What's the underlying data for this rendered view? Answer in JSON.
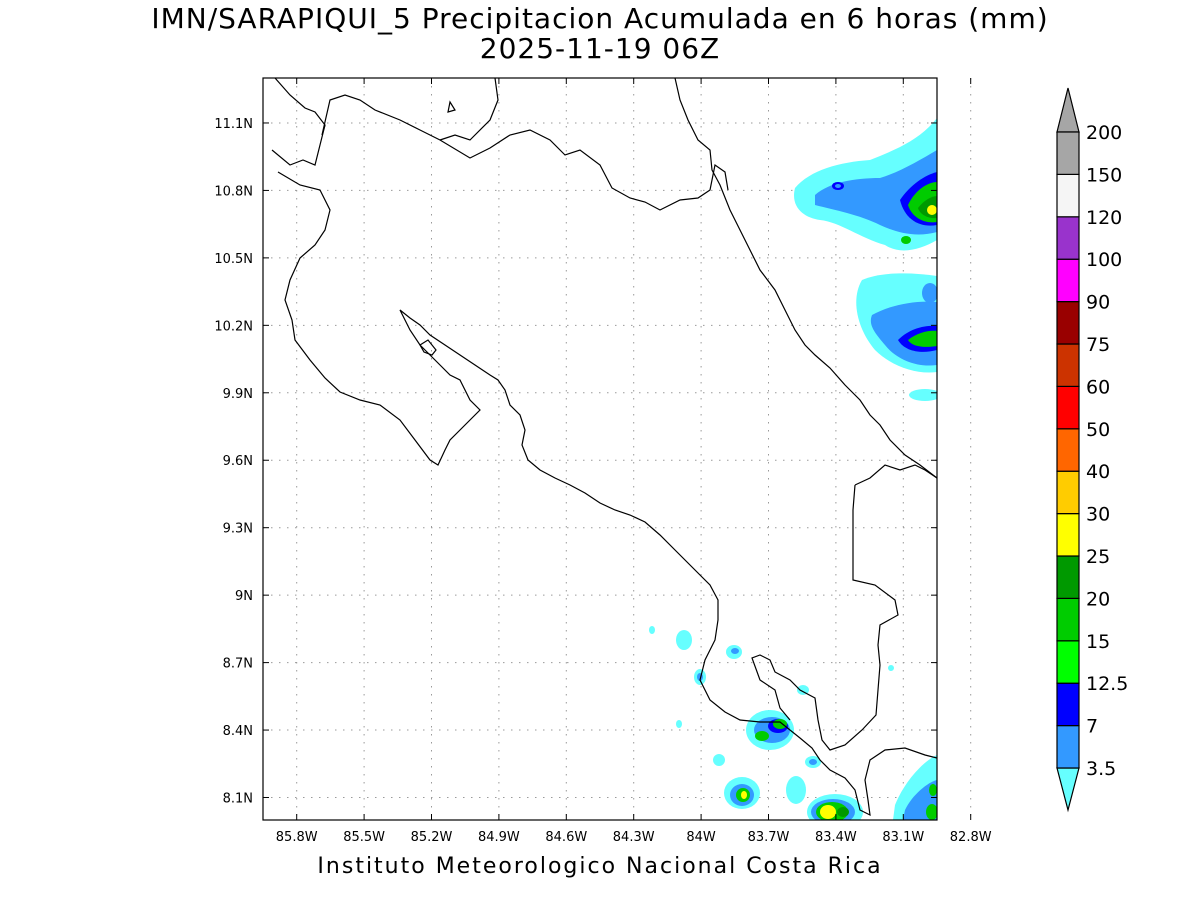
{
  "title": {
    "line1": "IMN/SARAPIQUI_5 Precipitacion Acumulada en 6 horas (mm)",
    "line2": "2025-11-19 06Z"
  },
  "footer": "Instituto Meteorologico Nacional Costa Rica",
  "map": {
    "lat_ticks": [
      "11.1N",
      "10.8N",
      "10.5N",
      "10.2N",
      "9.9N",
      "9.6N",
      "9.3N",
      "9N",
      "8.7N",
      "8.4N",
      "8.1N"
    ],
    "lon_ticks": [
      "85.8W",
      "85.5W",
      "85.2W",
      "84.9W",
      "84.6W",
      "84.3W",
      "84W",
      "83.7W",
      "83.4W",
      "83.1W",
      "82.8W"
    ],
    "lat_range": [
      8.0,
      11.3
    ],
    "lon_range": [
      85.95,
      82.95
    ],
    "grid": "dotted"
  },
  "colorbar": {
    "labels": [
      "3.5",
      "7",
      "12.5",
      "15",
      "20",
      "25",
      "30",
      "40",
      "50",
      "60",
      "75",
      "90",
      "100",
      "120",
      "150",
      "200"
    ],
    "colors": [
      "#66ffff",
      "#3399ff",
      "#0000ff",
      "#00ff00",
      "#00cc00",
      "#009900",
      "#ffff00",
      "#ffcc00",
      "#ff6600",
      "#ff0000",
      "#cc3300",
      "#990000",
      "#ff00ff",
      "#9933cc",
      "#f5f5f5",
      "#a6a6a6"
    ]
  }
}
